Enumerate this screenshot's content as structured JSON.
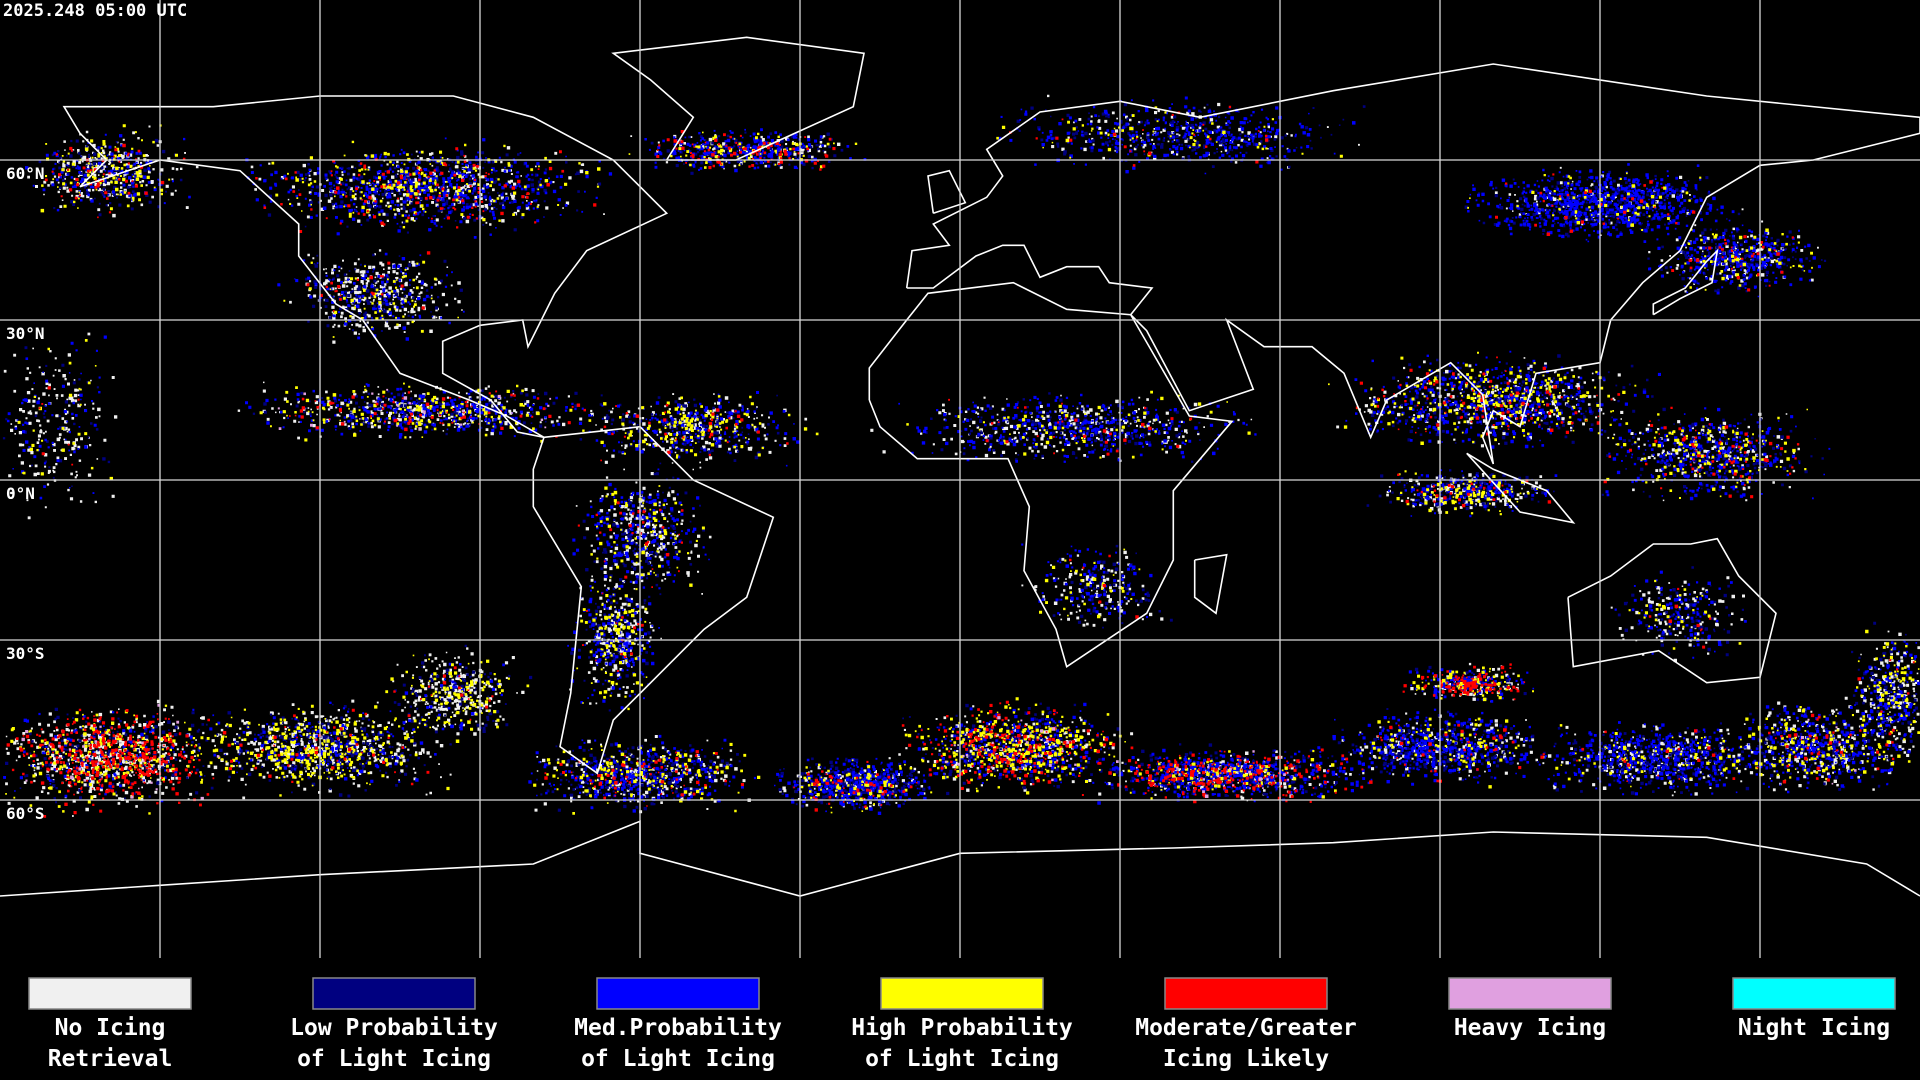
{
  "header": {
    "timestamp": "2025.248 05:00 UTC"
  },
  "map": {
    "latitude_labels": [
      "60°N",
      "30°N",
      "0°N",
      "30°S",
      "60°S"
    ]
  },
  "legend": [
    {
      "lines": [
        "No Icing",
        "Retrieval"
      ],
      "color": "#f0f0f0"
    },
    {
      "lines": [
        "Low Probability",
        "of Light Icing"
      ],
      "color": "#000080"
    },
    {
      "lines": [
        "Med.Probability",
        "of Light Icing"
      ],
      "color": "#0000ff"
    },
    {
      "lines": [
        "High Probability",
        "of Light Icing"
      ],
      "color": "#ffff00"
    },
    {
      "lines": [
        "Moderate/Greater",
        "Icing Likely"
      ],
      "color": "#ff0000"
    },
    {
      "lines": [
        "Heavy Icing"
      ],
      "color": "#e0a0e0"
    },
    {
      "lines": [
        "Night Icing"
      ],
      "color": "#00ffff"
    }
  ]
}
